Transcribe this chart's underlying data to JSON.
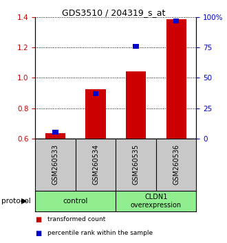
{
  "title": "GDS3510 / 204319_s_at",
  "samples": [
    "GSM260533",
    "GSM260534",
    "GSM260535",
    "GSM260536"
  ],
  "transformed_counts": [
    0.634,
    0.924,
    1.044,
    1.385
  ],
  "percentile_ranks_pct": [
    5.0,
    37.0,
    76.0,
    97.0
  ],
  "ylim_left": [
    0.6,
    1.4
  ],
  "ylim_right": [
    0,
    100
  ],
  "yticks_left": [
    0.6,
    0.8,
    1.0,
    1.2,
    1.4
  ],
  "yticks_right": [
    0,
    25,
    50,
    75,
    100
  ],
  "bar_width": 0.5,
  "red_color": "#cc0000",
  "blue_color": "#0000cc",
  "legend_red": "transformed count",
  "legend_blue": "percentile rank within the sample",
  "protocol_label": "protocol",
  "left_axis_color": "#cc0000",
  "right_axis_color": "#0000cc",
  "plot_bg_color": "#ffffff",
  "bar_bottom": 0.6,
  "sample_box_color": "#c8c8c8",
  "protocol_color": "#90ee90"
}
